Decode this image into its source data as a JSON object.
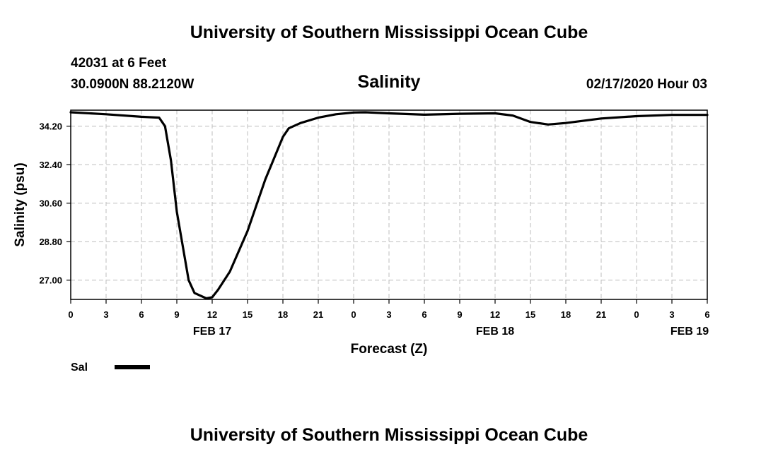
{
  "header": {
    "title": "University of Southern Mississippi Ocean Cube",
    "station": "42031 at 6 Feet",
    "location": "30.0900N 88.2120W",
    "chart_title": "Salinity",
    "forecast_time": "02/17/2020 Hour 03"
  },
  "footer": {
    "title": "University of Southern Mississippi Ocean Cube"
  },
  "legend": {
    "label": "Sal"
  },
  "chart_data": {
    "type": "line",
    "title": "Salinity",
    "xlabel": "Forecast (Z)",
    "ylabel": "Salinity (psu)",
    "ylim": [
      26.1,
      34.95
    ],
    "yticks": [
      "34.20",
      "32.40",
      "30.60",
      "28.80",
      "27.00"
    ],
    "xlim": [
      0,
      54
    ],
    "xtick_labels": [
      "0",
      "3",
      "6",
      "9",
      "12",
      "15",
      "18",
      "21",
      "0",
      "3",
      "6",
      "9",
      "12",
      "15",
      "18",
      "21",
      "0",
      "3",
      "6"
    ],
    "date_labels": [
      {
        "label": "FEB 17",
        "x": 12
      },
      {
        "label": "FEB 18",
        "x": 36
      },
      {
        "label": "FEB 19",
        "x": 52.5
      }
    ],
    "grid": true,
    "line_color": "#000000",
    "series": [
      {
        "name": "Sal",
        "x": [
          0,
          3,
          6,
          7.5,
          8,
          8.5,
          9,
          10,
          10.5,
          11.5,
          12,
          12.5,
          13.5,
          15,
          16.5,
          18,
          18.5,
          19.5,
          21,
          22.5,
          24,
          25,
          27,
          30,
          33,
          36,
          37.5,
          39,
          40.5,
          42,
          45,
          48,
          51,
          54
        ],
        "values": [
          34.85,
          34.76,
          34.64,
          34.6,
          34.2,
          32.6,
          30.2,
          27.0,
          26.4,
          26.15,
          26.2,
          26.55,
          27.4,
          29.3,
          31.7,
          33.7,
          34.1,
          34.35,
          34.6,
          34.76,
          34.84,
          34.85,
          34.8,
          34.74,
          34.78,
          34.8,
          34.7,
          34.4,
          34.28,
          34.35,
          34.56,
          34.67,
          34.73,
          34.73
        ]
      }
    ]
  }
}
